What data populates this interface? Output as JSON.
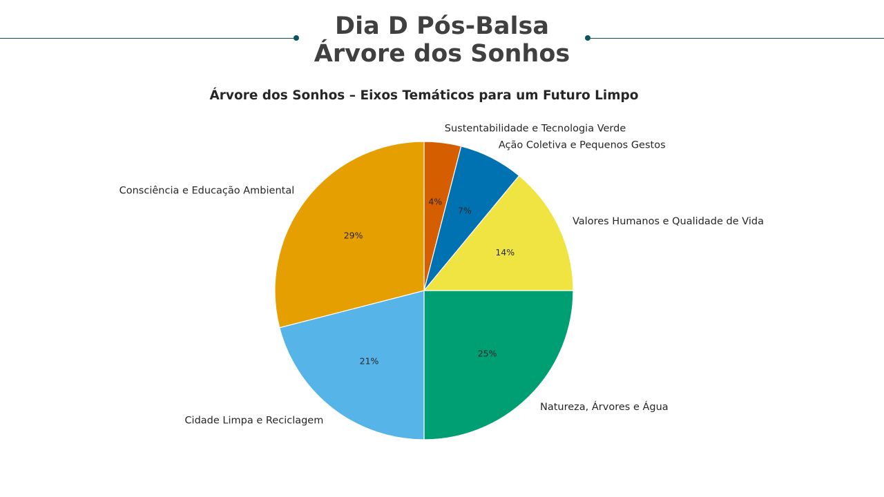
{
  "header": {
    "line1": "Dia D Pós-Balsa",
    "line2": "Árvore dos Sonhos",
    "accent_color": "#0b5560"
  },
  "chart_data": {
    "type": "pie",
    "title": "Árvore dos Sonhos – Eixos Temáticos para um Futuro Limpo",
    "start_angle_deg": 90,
    "direction": "clockwise",
    "slices": [
      {
        "label": "Sustentabilidade e Tecnologia Verde",
        "value": 4,
        "pct_label": "4%",
        "color": "#D55E00"
      },
      {
        "label": "Ação Coletiva e Pequenos Gestos",
        "value": 7,
        "pct_label": "7%",
        "color": "#0072B2"
      },
      {
        "label": "Valores Humanos e Qualidade de Vida",
        "value": 14,
        "pct_label": "14%",
        "color": "#F0E442"
      },
      {
        "label": "Natureza, Árvores e Água",
        "value": 25,
        "pct_label": "25%",
        "color": "#009E73"
      },
      {
        "label": "Cidade Limpa e Reciclagem",
        "value": 21,
        "pct_label": "21%",
        "color": "#56B4E9"
      },
      {
        "label": "Consciência e Educação Ambiental",
        "value": 29,
        "pct_label": "29%",
        "color": "#E69F00"
      }
    ]
  }
}
